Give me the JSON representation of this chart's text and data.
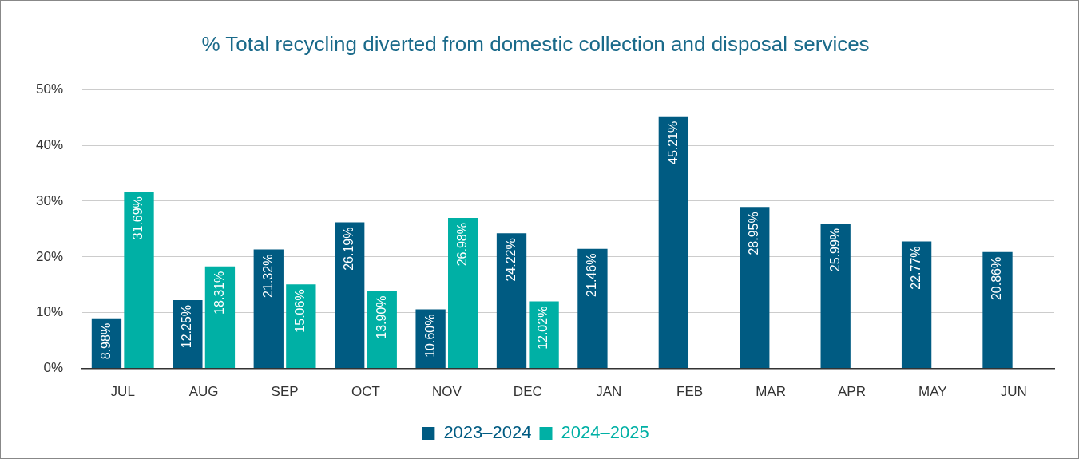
{
  "chart_data": {
    "type": "bar",
    "title": "% Total recycling diverted from domestic collection and disposal services",
    "categories": [
      "JUL",
      "AUG",
      "SEP",
      "OCT",
      "NOV",
      "DEC",
      "JAN",
      "FEB",
      "MAR",
      "APR",
      "MAY",
      "JUN"
    ],
    "series": [
      {
        "name": "2023–2024",
        "color": "#005b82",
        "values": [
          8.98,
          12.25,
          21.32,
          26.19,
          10.6,
          24.22,
          21.46,
          45.21,
          28.95,
          25.99,
          22.77,
          20.86
        ],
        "value_labels": [
          "8.98%",
          "12.25%",
          "21.32%",
          "26.19%",
          "10.60%",
          "24.22%",
          "21.46%",
          "45.21%",
          "28.95%",
          "25.99%",
          "22.77%",
          "20.86%"
        ]
      },
      {
        "name": "2024–2025",
        "color": "#00b0a5",
        "values": [
          31.69,
          18.31,
          15.06,
          13.9,
          26.98,
          12.02,
          null,
          null,
          null,
          null,
          null,
          null
        ],
        "value_labels": [
          "31.69%",
          "18.31%",
          "15.06%",
          "13.90%",
          "26.98%",
          "12.02%",
          null,
          null,
          null,
          null,
          null,
          null
        ]
      }
    ],
    "ylim": [
      0,
      50
    ],
    "yticks": [
      {
        "value": 0,
        "label": "0%"
      },
      {
        "value": 10,
        "label": "10%"
      },
      {
        "value": 20,
        "label": "20%"
      },
      {
        "value": 30,
        "label": "30%"
      },
      {
        "value": 40,
        "label": "40%"
      },
      {
        "value": 50,
        "label": "50%"
      }
    ],
    "grid": "y",
    "legend": "bottom"
  }
}
